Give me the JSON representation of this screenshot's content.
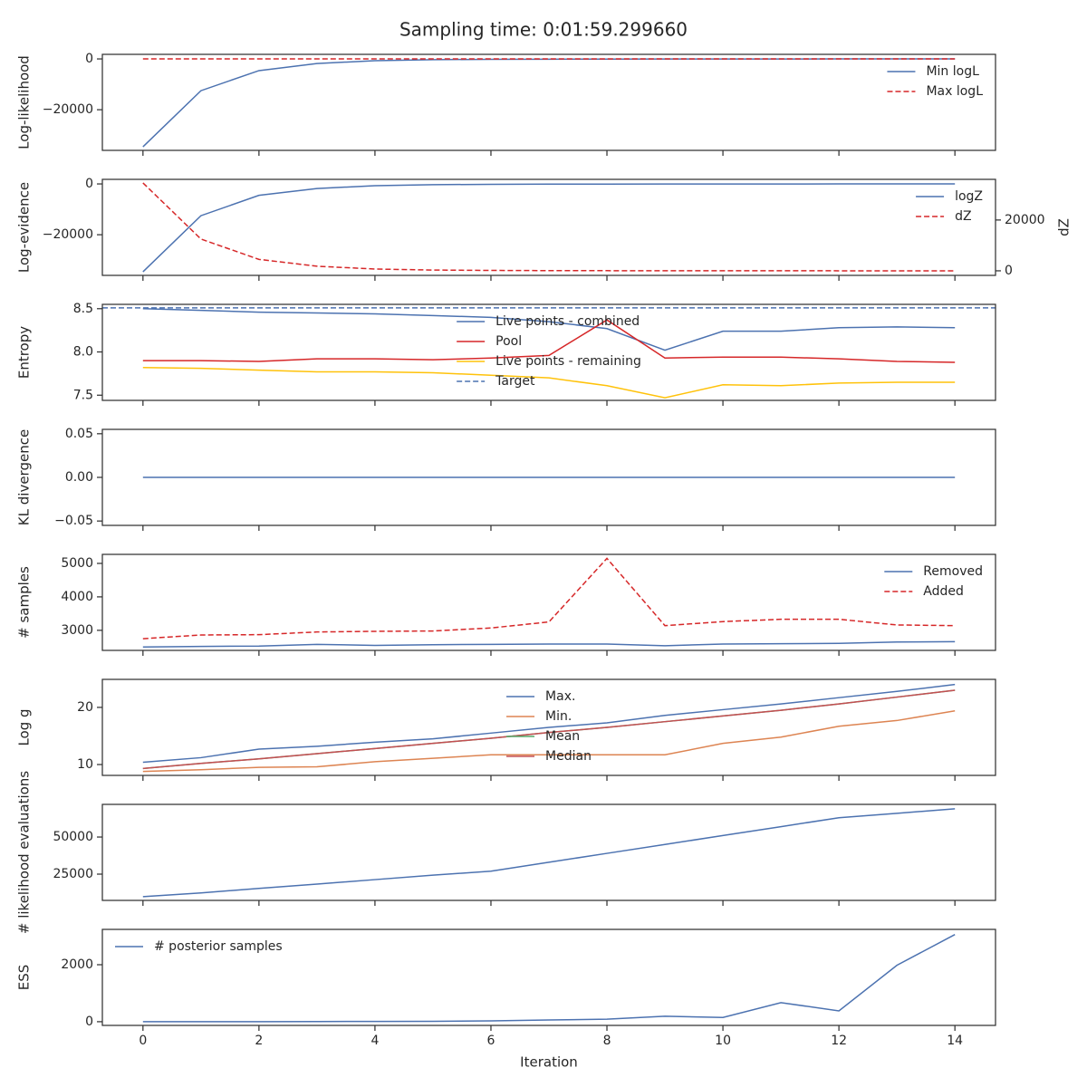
{
  "chart_data": [
    {
      "type": "line",
      "title": "Sampling time: 0:01:59.299660",
      "ylabel": "Log-likelihood",
      "x": [
        0,
        1,
        2,
        3,
        4,
        5,
        6,
        7,
        8,
        9,
        10,
        11,
        12,
        13,
        14
      ],
      "xlim": [
        -0.7,
        14.7
      ],
      "xticks": [
        0,
        2,
        4,
        6,
        8,
        10,
        12,
        14
      ],
      "ylim": [
        -36000,
        1800
      ],
      "yticks": [
        {
          "value": -20000,
          "label": "−20000"
        },
        0
      ],
      "legend": "upper right",
      "series": [
        {
          "name": "Min logL",
          "color": "#4c72b0",
          "linestyle": "solid",
          "values": [
            -34600,
            -12500,
            -4600,
            -1800,
            -700,
            -300,
            -150,
            -100,
            -60,
            -40,
            -20,
            -10,
            -5,
            -3,
            -2
          ]
        },
        {
          "name": "Max logL",
          "color": "#d62728",
          "linestyle": "dashed",
          "values": [
            0,
            0,
            0,
            0,
            0,
            0,
            0,
            0,
            0,
            0,
            0,
            0,
            0,
            0,
            0
          ]
        }
      ]
    },
    {
      "type": "line",
      "ylabel": "Log-evidence",
      "y2label": "dZ",
      "x": [
        0,
        1,
        2,
        3,
        4,
        5,
        6,
        7,
        8,
        9,
        10,
        11,
        12,
        13,
        14
      ],
      "xlim": [
        -0.7,
        14.7
      ],
      "xticks": [
        0,
        2,
        4,
        6,
        8,
        10,
        12,
        14
      ],
      "ylim": [
        -36000,
        1800
      ],
      "yticks": [
        {
          "value": -20000,
          "label": "−20000"
        },
        0
      ],
      "y2lim": [
        -1800,
        36000
      ],
      "y2ticks": [
        0,
        20000
      ],
      "legend": "upper right",
      "series": [
        {
          "name": "logZ",
          "color": "#4c72b0",
          "linestyle": "solid",
          "values": [
            -34600,
            -12500,
            -4500,
            -1800,
            -700,
            -300,
            -150,
            -80,
            -50,
            -30,
            -20,
            -10,
            -5,
            -3,
            -2
          ]
        },
        {
          "name": "dZ",
          "color": "#d62728",
          "linestyle": "dashed",
          "axis": "y2",
          "values": [
            34600,
            12500,
            4500,
            1800,
            700,
            300,
            150,
            80,
            50,
            30,
            20,
            10,
            5,
            3,
            2
          ]
        }
      ]
    },
    {
      "type": "line",
      "ylabel": "Entropy",
      "x": [
        0,
        1,
        2,
        3,
        4,
        5,
        6,
        7,
        8,
        9,
        10,
        11,
        12,
        13,
        14
      ],
      "xlim": [
        -0.7,
        14.7
      ],
      "xticks": [
        0,
        2,
        4,
        6,
        8,
        10,
        12,
        14
      ],
      "ylim": [
        7.44,
        8.55
      ],
      "yticks": [
        7.5,
        {
          "value": 8,
          "label": "8.0"
        },
        8.5
      ],
      "legend": "upper center",
      "series": [
        {
          "name": "Live points - combined",
          "color": "#4c72b0",
          "linestyle": "solid",
          "values": [
            8.5,
            8.48,
            8.46,
            8.45,
            8.44,
            8.42,
            8.4,
            8.35,
            8.27,
            8.02,
            8.24,
            8.24,
            8.28,
            8.29,
            8.28
          ]
        },
        {
          "name": "Pool",
          "color": "#d62728",
          "linestyle": "solid",
          "values": [
            7.9,
            7.9,
            7.89,
            7.92,
            7.92,
            7.91,
            7.93,
            7.96,
            8.37,
            7.93,
            7.94,
            7.94,
            7.92,
            7.89,
            7.88
          ]
        },
        {
          "name": "Live points - remaining",
          "color": "#ffc20a",
          "linestyle": "solid",
          "values": [
            7.82,
            7.81,
            7.79,
            7.77,
            7.77,
            7.76,
            7.73,
            7.7,
            7.61,
            7.47,
            7.62,
            7.61,
            7.64,
            7.65,
            7.65
          ]
        },
        {
          "name": "Target",
          "color": "#4c72b0",
          "linestyle": "dashed",
          "y": 8.51
        }
      ]
    },
    {
      "type": "line",
      "ylabel": "KL divergence",
      "x": [
        0,
        1,
        2,
        3,
        4,
        5,
        6,
        7,
        8,
        9,
        10,
        11,
        12,
        13,
        14
      ],
      "xlim": [
        -0.7,
        14.7
      ],
      "xticks": [
        0,
        2,
        4,
        6,
        8,
        10,
        12,
        14
      ],
      "ylim": [
        -0.055,
        0.055
      ],
      "yticks": [
        {
          "value": -0.05,
          "label": "−0.05"
        },
        {
          "value": 0,
          "label": "0.00"
        },
        0.05
      ],
      "series": [
        {
          "color": "#4c72b0",
          "linestyle": "solid",
          "values": [
            0,
            0,
            0,
            0,
            0,
            0,
            0,
            0,
            0,
            0,
            0,
            0,
            0,
            0,
            0
          ]
        }
      ]
    },
    {
      "type": "line",
      "ylabel": "# samples",
      "x": [
        0,
        1,
        2,
        3,
        4,
        5,
        6,
        7,
        8,
        9,
        10,
        11,
        12,
        13,
        14
      ],
      "xlim": [
        -0.7,
        14.7
      ],
      "xticks": [
        0,
        2,
        4,
        6,
        8,
        10,
        12,
        14
      ],
      "ylim": [
        2400,
        5270
      ],
      "yticks": [
        3000,
        4000,
        5000
      ],
      "legend": "upper right",
      "series": [
        {
          "name": "Removed",
          "color": "#4c72b0",
          "linestyle": "solid",
          "values": [
            2500,
            2520,
            2530,
            2580,
            2550,
            2570,
            2580,
            2590,
            2590,
            2540,
            2590,
            2600,
            2610,
            2650,
            2660
          ]
        },
        {
          "name": "Added",
          "color": "#d62728",
          "linestyle": "dashed",
          "values": [
            2750,
            2860,
            2870,
            2950,
            2970,
            2980,
            3070,
            3250,
            5150,
            3140,
            3260,
            3330,
            3330,
            3160,
            3140
          ]
        }
      ]
    },
    {
      "type": "line",
      "ylabel": "Log g",
      "x": [
        0,
        1,
        2,
        3,
        4,
        5,
        6,
        7,
        8,
        9,
        10,
        11,
        12,
        13,
        14
      ],
      "xlim": [
        -0.7,
        14.7
      ],
      "xticks": [
        0,
        2,
        4,
        6,
        8,
        10,
        12,
        14
      ],
      "ylim": [
        8.1,
        24.9
      ],
      "yticks": [
        10,
        20
      ],
      "legend": "upper center",
      "series": [
        {
          "name": "Max.",
          "color": "#4c72b0",
          "linestyle": "solid",
          "values": [
            10.4,
            11.2,
            12.7,
            13.2,
            13.9,
            14.5,
            15.5,
            16.5,
            17.3,
            18.6,
            19.6,
            20.6,
            21.7,
            22.8,
            24.0
          ]
        },
        {
          "name": "Min.",
          "color": "#dd8452",
          "linestyle": "solid",
          "values": [
            8.8,
            9.1,
            9.5,
            9.6,
            10.5,
            11.1,
            11.7,
            11.7,
            11.7,
            11.7,
            13.7,
            14.8,
            16.7,
            17.7,
            19.4
          ]
        },
        {
          "name": "Mean",
          "color": "#55a868",
          "linestyle": "solid",
          "values": [
            9.3,
            10.2,
            11.0,
            11.9,
            12.8,
            13.7,
            14.6,
            15.6,
            16.5,
            17.5,
            18.5,
            19.5,
            20.6,
            21.8,
            23.0
          ]
        },
        {
          "name": "Median",
          "color": "#c44e52",
          "linestyle": "solid",
          "values": [
            9.3,
            10.2,
            11.0,
            11.9,
            12.8,
            13.7,
            14.6,
            15.6,
            16.5,
            17.5,
            18.5,
            19.5,
            20.6,
            21.8,
            23.0
          ]
        }
      ]
    },
    {
      "type": "line",
      "ylabel": "# likelihood evaluations",
      "x": [
        0,
        1,
        2,
        3,
        4,
        5,
        6,
        7,
        8,
        9,
        10,
        11,
        12,
        13,
        14
      ],
      "xlim": [
        -0.7,
        14.7
      ],
      "xticks": [
        0,
        2,
        4,
        6,
        8,
        10,
        12,
        14
      ],
      "ylim": [
        7300,
        72000
      ],
      "yticks": [
        25000,
        50000
      ],
      "series": [
        {
          "color": "#4c72b0",
          "linestyle": "solid",
          "values": [
            9800,
            12300,
            15400,
            18300,
            21300,
            24300,
            27000,
            33000,
            39000,
            45000,
            51000,
            57000,
            63000,
            66000,
            69000
          ]
        }
      ]
    },
    {
      "type": "line",
      "ylabel": "ESS",
      "xlabel": "Iteration",
      "xtick_labels": true,
      "x": [
        0,
        1,
        2,
        3,
        4,
        5,
        6,
        7,
        8,
        9,
        10,
        11,
        12,
        13,
        14
      ],
      "xlim": [
        -0.7,
        14.7
      ],
      "xticks": [
        0,
        2,
        4,
        6,
        8,
        10,
        12,
        14
      ],
      "ylim": [
        -130,
        3240
      ],
      "yticks": [
        0,
        2000
      ],
      "legend": "upper left",
      "series": [
        {
          "name": "# posterior samples",
          "color": "#4c72b0",
          "linestyle": "solid",
          "values": [
            0,
            0,
            0,
            5,
            10,
            15,
            30,
            60,
            90,
            190,
            150,
            670,
            380,
            1980,
            3060
          ]
        }
      ]
    }
  ]
}
